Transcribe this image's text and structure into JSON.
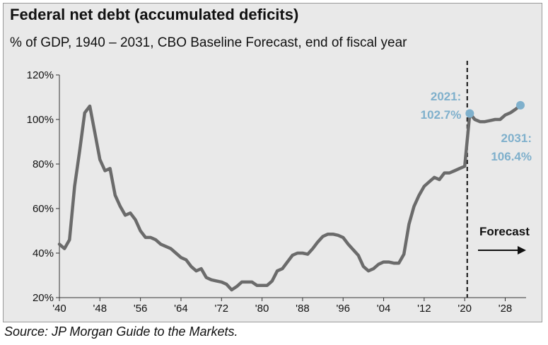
{
  "header": {
    "title": "Federal net debt (accumulated deficits)",
    "subtitle": "% of GDP, 1940 – 2031, CBO Baseline Forecast, end of fiscal year"
  },
  "footer": {
    "source": "Source: JP Morgan Guide to the Markets."
  },
  "colors": {
    "panel_bg": "#e9e9e9",
    "line": "#6b6b6b",
    "highlight": "#7fb0cc",
    "text": "#111111"
  },
  "chart_data": {
    "type": "line",
    "title": "Federal net debt (accumulated deficits)",
    "subtitle": "% of GDP, 1940 – 2031, CBO Baseline Forecast, end of fiscal year",
    "xlabel": "",
    "ylabel": "",
    "xlim": [
      1940,
      2031
    ],
    "ylim": [
      20,
      120
    ],
    "grid": false,
    "x_ticks": [
      1940,
      1948,
      1956,
      1964,
      1972,
      1980,
      1988,
      1996,
      2004,
      2012,
      2020,
      2028
    ],
    "x_tick_labels": [
      "'40",
      "'48",
      "'56",
      "'64",
      "'72",
      "'80",
      "'88",
      "'96",
      "'04",
      "'12",
      "'20",
      "'28"
    ],
    "y_ticks": [
      20,
      40,
      60,
      80,
      100,
      120
    ],
    "y_tick_labels": [
      "20%",
      "40%",
      "60%",
      "80%",
      "100%",
      "120%"
    ],
    "forecast_start": 2020.5,
    "forecast_label": "Forecast",
    "series": [
      {
        "name": "Federal net debt (% of GDP)",
        "x": [
          1940,
          1941,
          1942,
          1943,
          1944,
          1945,
          1946,
          1947,
          1948,
          1949,
          1950,
          1951,
          1952,
          1953,
          1954,
          1955,
          1956,
          1957,
          1958,
          1959,
          1960,
          1961,
          1962,
          1963,
          1964,
          1965,
          1966,
          1967,
          1968,
          1969,
          1970,
          1971,
          1972,
          1973,
          1974,
          1975,
          1976,
          1977,
          1978,
          1979,
          1980,
          1981,
          1982,
          1983,
          1984,
          1985,
          1986,
          1987,
          1988,
          1989,
          1990,
          1991,
          1992,
          1993,
          1994,
          1995,
          1996,
          1997,
          1998,
          1999,
          2000,
          2001,
          2002,
          2003,
          2004,
          2005,
          2006,
          2007,
          2008,
          2009,
          2010,
          2011,
          2012,
          2013,
          2014,
          2015,
          2016,
          2017,
          2018,
          2019,
          2020,
          2021,
          2022,
          2023,
          2024,
          2025,
          2026,
          2027,
          2028,
          2029,
          2030,
          2031
        ],
        "values": [
          44,
          42,
          46,
          70,
          86,
          103,
          106,
          94,
          82,
          77,
          78,
          66,
          61,
          57,
          58,
          55,
          50,
          47,
          47,
          46,
          44,
          43,
          42,
          40,
          38,
          37,
          34,
          32,
          33,
          29,
          28,
          27.5,
          27,
          26,
          23.5,
          25,
          27,
          27,
          27,
          25.5,
          25.5,
          25.5,
          27.5,
          32,
          33,
          36,
          39,
          40,
          40,
          39.5,
          42,
          45,
          47.5,
          48.5,
          48.5,
          48,
          47,
          44,
          41.5,
          39,
          34,
          32,
          33,
          35,
          36,
          36,
          35.5,
          35.5,
          39.5,
          53,
          61,
          66,
          70,
          72,
          74,
          73,
          76,
          76,
          77,
          78,
          79,
          102.7,
          100,
          99,
          99,
          99.5,
          100,
          100,
          102,
          103,
          104.5,
          106.4
        ]
      }
    ],
    "annotations": [
      {
        "year_label": "2021:",
        "value_label": "102.7%",
        "x": 2021,
        "y": 102.7
      },
      {
        "year_label": "2031:",
        "value_label": "106.4%",
        "x": 2031,
        "y": 106.4
      }
    ]
  }
}
